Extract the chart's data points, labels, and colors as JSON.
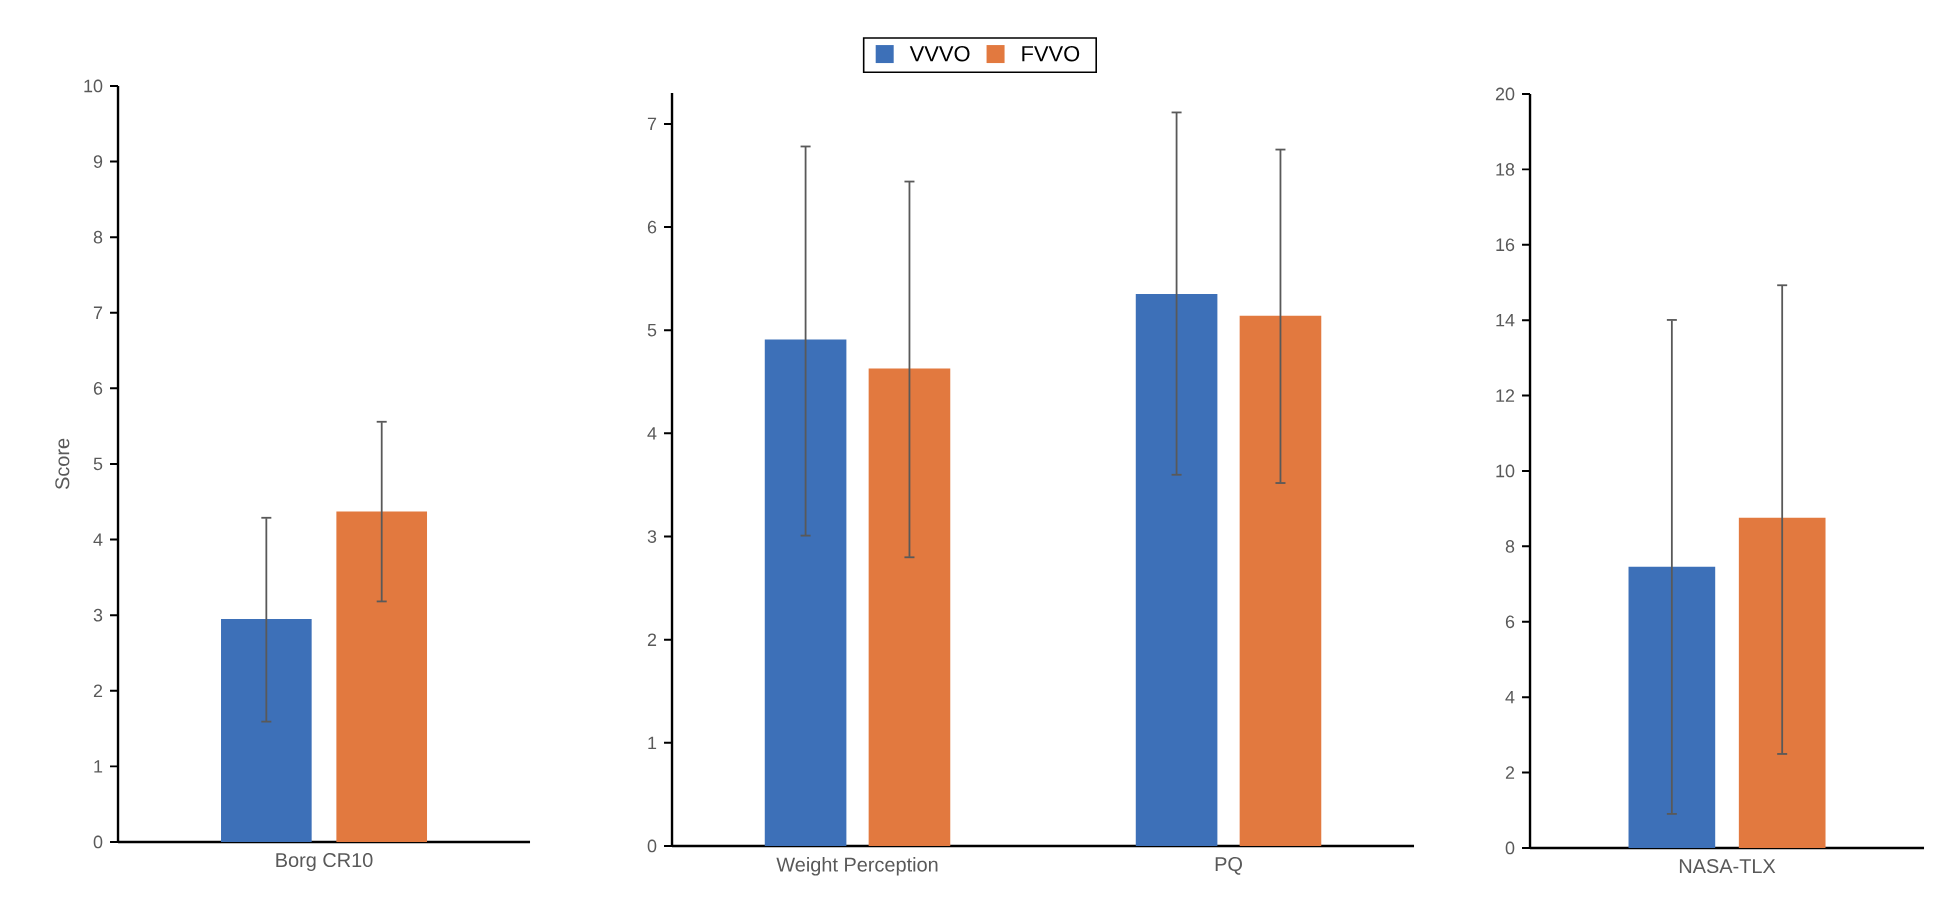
{
  "chart_data": [
    {
      "type": "bar",
      "ylabel": "Score",
      "categories": [
        "Borg CR10"
      ],
      "ylim": [
        0,
        10
      ],
      "yticks": [
        0,
        1,
        2,
        3,
        4,
        5,
        6,
        7,
        8,
        9,
        10
      ],
      "series": [
        {
          "color": "#3d70b8",
          "values": [
            2.95
          ],
          "errors": [
            [
              1.58,
              4.3
            ]
          ]
        },
        {
          "color": "#e2793f",
          "values": [
            4.37
          ],
          "errors": [
            [
              3.17,
              5.57
            ]
          ]
        }
      ]
    },
    {
      "type": "bar",
      "categories": [
        "Weight Perception",
        "PQ"
      ],
      "ylim": [
        0,
        7.3
      ],
      "yticks": [
        0,
        1,
        2,
        3,
        4,
        5,
        6,
        7
      ],
      "legend": "top",
      "series": [
        {
          "name": "VVVO",
          "color": "#3d70b8",
          "values": [
            4.91,
            5.35
          ],
          "errors": [
            [
              3.0,
              6.79
            ],
            [
              3.59,
              7.12
            ]
          ]
        },
        {
          "name": "FVVO",
          "color": "#e2793f",
          "values": [
            4.63,
            5.14
          ],
          "errors": [
            [
              2.79,
              6.45
            ],
            [
              3.51,
              6.76
            ]
          ]
        }
      ]
    },
    {
      "type": "bar",
      "categories": [
        "NASA-TLX"
      ],
      "ylim": [
        0,
        20
      ],
      "yticks": [
        0,
        2,
        4,
        6,
        8,
        10,
        12,
        14,
        16,
        18,
        20
      ],
      "series": [
        {
          "color": "#3d70b8",
          "values": [
            7.46
          ],
          "errors": [
            [
              0.88,
              14.03
            ]
          ]
        },
        {
          "color": "#e2793f",
          "values": [
            8.76
          ],
          "errors": [
            [
              2.47,
              14.95
            ]
          ]
        }
      ]
    }
  ]
}
